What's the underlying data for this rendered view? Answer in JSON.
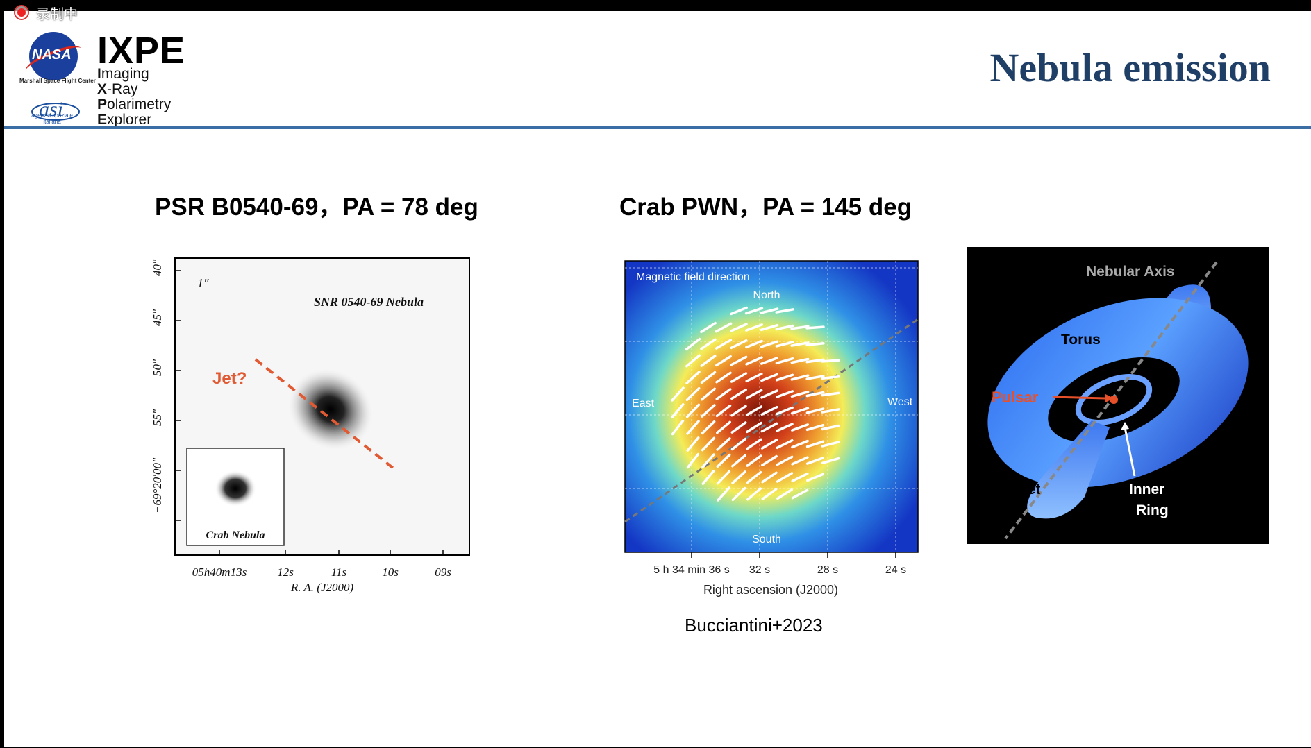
{
  "recording": {
    "label": "录制中"
  },
  "logo": {
    "nasa": "NASA",
    "msfc": "Marshall Space Flight Center",
    "asi_text": "agenzia spaziale italiana",
    "mission": "IXPE",
    "expansion": [
      {
        "initial": "I",
        "rest": "maging"
      },
      {
        "initial": "X",
        "rest": "-Ray"
      },
      {
        "initial": "P",
        "rest": "olarimetry"
      },
      {
        "initial": "E",
        "rest": "xplorer"
      }
    ]
  },
  "slide": {
    "title": "Nebula emission"
  },
  "left_panel": {
    "heading": "PSR B0540-69，PA = 78 deg",
    "image_label": "SNR 0540-69 Nebula",
    "scale_bar": "1″",
    "jet_label": "Jet?",
    "inset_label": "Crab Nebula",
    "x_ticks": [
      "05h40m13s",
      "12s",
      "11s",
      "10s",
      "09s"
    ],
    "x_axis_label": "R. A. (J2000)",
    "y_ticks": [
      "40″",
      "45″",
      "50″",
      "55″",
      "−69°20′00″"
    ],
    "colors": {
      "jet": "#e05a33"
    }
  },
  "middle_panel": {
    "heading": "Crab PWN，PA = 145 deg",
    "map_label": "Magnetic field direction",
    "north": "North",
    "south": "South",
    "east": "East",
    "west": "West",
    "x_ticks": [
      "5 h 34 min 36 s",
      "32 s",
      "28 s",
      "24 s"
    ],
    "x_axis_label": "Right ascension (J2000)",
    "citation": "Bucciantini+2023"
  },
  "right_panel": {
    "nebular_axis": "Nebular Axis",
    "torus": "Torus",
    "pulsar": "Pulsar",
    "jet": "Jet",
    "inner_ring": "Inner Ring",
    "colors": {
      "pulsar": "#e8502a"
    }
  }
}
